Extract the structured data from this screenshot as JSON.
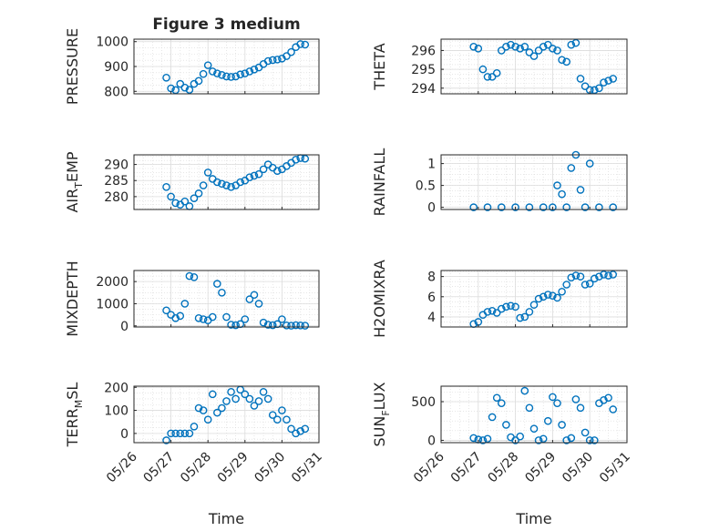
{
  "figure": {
    "title": "Figure 3 medium"
  },
  "chart_data": [
    {
      "id": "pressure",
      "type": "scatter",
      "title": "Figure 3 medium",
      "ylabel": "PRESSURE",
      "ylabel_sub": "",
      "ylabel_tail": "",
      "xlabel": "",
      "xlim": [
        "05/26",
        "05/31"
      ],
      "ylim": [
        790,
        1010
      ],
      "yticks": [
        800,
        900,
        1000
      ],
      "xticks": [],
      "grid": true,
      "minor_grid": true,
      "color": "#0072BD",
      "x": [
        "05/26 21:00",
        "05/27 00:00",
        "05/27 03:00",
        "05/27 06:00",
        "05/27 09:00",
        "05/27 12:00",
        "05/27 15:00",
        "05/27 18:00",
        "05/27 21:00",
        "05/28 00:00",
        "05/28 03:00",
        "05/28 06:00",
        "05/28 09:00",
        "05/28 12:00",
        "05/28 15:00",
        "05/28 18:00",
        "05/28 21:00",
        "05/29 00:00",
        "05/29 03:00",
        "05/29 06:00",
        "05/29 09:00",
        "05/29 12:00",
        "05/29 15:00",
        "05/29 18:00",
        "05/29 21:00",
        "05/30 00:00",
        "05/30 03:00",
        "05/30 06:00",
        "05/30 09:00",
        "05/30 12:00",
        "05/30 15:00"
      ],
      "y": [
        855,
        812,
        805,
        830,
        815,
        806,
        830,
        842,
        870,
        905,
        880,
        872,
        866,
        860,
        858,
        860,
        868,
        872,
        880,
        888,
        896,
        910,
        922,
        926,
        928,
        932,
        942,
        958,
        978,
        990,
        988
      ]
    },
    {
      "id": "theta",
      "type": "scatter",
      "title": "",
      "ylabel": "THETA",
      "ylabel_sub": "",
      "ylabel_tail": "",
      "xlabel": "",
      "xlim": [
        "05/26",
        "05/31"
      ],
      "ylim": [
        293.7,
        296.6
      ],
      "yticks": [
        294,
        295,
        296
      ],
      "xticks": [],
      "grid": true,
      "minor_grid": true,
      "color": "#0072BD",
      "x": [
        "05/26 21:00",
        "05/27 00:00",
        "05/27 03:00",
        "05/27 06:00",
        "05/27 09:00",
        "05/27 12:00",
        "05/27 15:00",
        "05/27 18:00",
        "05/27 21:00",
        "05/28 00:00",
        "05/28 03:00",
        "05/28 06:00",
        "05/28 09:00",
        "05/28 12:00",
        "05/28 15:00",
        "05/28 18:00",
        "05/28 21:00",
        "05/29 00:00",
        "05/29 03:00",
        "05/29 06:00",
        "05/29 09:00",
        "05/29 12:00",
        "05/29 15:00",
        "05/29 18:00",
        "05/29 21:00",
        "05/30 00:00",
        "05/30 03:00",
        "05/30 06:00",
        "05/30 09:00",
        "05/30 12:00",
        "05/30 15:00"
      ],
      "y": [
        296.2,
        296.1,
        295.0,
        294.6,
        294.6,
        294.8,
        296.0,
        296.2,
        296.3,
        296.2,
        296.1,
        296.2,
        295.9,
        295.7,
        296.0,
        296.2,
        296.3,
        296.1,
        296.0,
        295.5,
        295.4,
        296.3,
        296.4,
        294.5,
        294.1,
        293.9,
        293.9,
        294.0,
        294.3,
        294.4,
        294.5
      ]
    },
    {
      "id": "air_temp",
      "type": "scatter",
      "title": "",
      "ylabel": "AIR",
      "ylabel_sub": "T",
      "ylabel_tail": "EMP",
      "xlabel": "",
      "xlim": [
        "05/26",
        "05/31"
      ],
      "ylim": [
        276,
        293
      ],
      "yticks": [
        280,
        285,
        290
      ],
      "xticks": [],
      "grid": true,
      "minor_grid": true,
      "color": "#0072BD",
      "x": [
        "05/26 21:00",
        "05/27 00:00",
        "05/27 03:00",
        "05/27 06:00",
        "05/27 09:00",
        "05/27 12:00",
        "05/27 15:00",
        "05/27 18:00",
        "05/27 21:00",
        "05/28 00:00",
        "05/28 03:00",
        "05/28 06:00",
        "05/28 09:00",
        "05/28 12:00",
        "05/28 15:00",
        "05/28 18:00",
        "05/28 21:00",
        "05/29 00:00",
        "05/29 03:00",
        "05/29 06:00",
        "05/29 09:00",
        "05/29 12:00",
        "05/29 15:00",
        "05/29 18:00",
        "05/29 21:00",
        "05/30 00:00",
        "05/30 03:00",
        "05/30 06:00",
        "05/30 09:00",
        "05/30 12:00",
        "05/30 15:00"
      ],
      "y": [
        283.0,
        280.0,
        278.0,
        277.5,
        278.5,
        277.0,
        279.5,
        281.0,
        283.5,
        287.5,
        285.5,
        284.5,
        284.0,
        283.5,
        283.0,
        283.5,
        284.5,
        285.0,
        286.0,
        286.5,
        287.0,
        288.5,
        290.0,
        289.0,
        288.0,
        288.5,
        289.5,
        290.5,
        291.5,
        292.0,
        291.8
      ]
    },
    {
      "id": "rainfall",
      "type": "scatter",
      "title": "",
      "ylabel": "RAINFALL",
      "ylabel_sub": "",
      "ylabel_tail": "",
      "xlabel": "",
      "xlim": [
        "05/26",
        "05/31"
      ],
      "ylim": [
        -0.05,
        1.2
      ],
      "yticks": [
        0,
        0.5,
        1
      ],
      "xticks": [],
      "grid": true,
      "minor_grid": true,
      "color": "#0072BD",
      "x": [
        "05/26 21:00",
        "05/27 06:00",
        "05/27 15:00",
        "05/28 00:00",
        "05/28 09:00",
        "05/28 18:00",
        "05/29 00:00",
        "05/29 03:00",
        "05/29 06:00",
        "05/29 09:00",
        "05/29 12:00",
        "05/29 15:00",
        "05/29 18:00",
        "05/29 21:00",
        "05/30 00:00",
        "05/30 06:00",
        "05/30 15:00"
      ],
      "y": [
        0,
        0,
        0,
        0,
        0,
        0,
        0,
        0.5,
        0.3,
        0,
        0.9,
        1.2,
        0.4,
        0,
        1.0,
        0,
        0
      ]
    },
    {
      "id": "mixdepth",
      "type": "scatter",
      "title": "",
      "ylabel": "MIXDEPTH",
      "ylabel_sub": "",
      "ylabel_tail": "",
      "xlabel": "",
      "xlim": [
        "05/26",
        "05/31"
      ],
      "ylim": [
        -50,
        2500
      ],
      "yticks": [
        0,
        1000,
        2000
      ],
      "xticks": [],
      "grid": true,
      "minor_grid": true,
      "color": "#0072BD",
      "x": [
        "05/26 21:00",
        "05/27 00:00",
        "05/27 03:00",
        "05/27 06:00",
        "05/27 09:00",
        "05/27 12:00",
        "05/27 15:00",
        "05/27 18:00",
        "05/27 21:00",
        "05/28 00:00",
        "05/28 03:00",
        "05/28 06:00",
        "05/28 09:00",
        "05/28 12:00",
        "05/28 15:00",
        "05/28 18:00",
        "05/28 21:00",
        "05/29 00:00",
        "05/29 03:00",
        "05/29 06:00",
        "05/29 09:00",
        "05/29 12:00",
        "05/29 15:00",
        "05/29 18:00",
        "05/29 21:00",
        "05/30 00:00",
        "05/30 03:00",
        "05/30 06:00",
        "05/30 09:00",
        "05/30 12:00",
        "05/30 15:00"
      ],
      "y": [
        700,
        500,
        350,
        450,
        1000,
        2250,
        2200,
        350,
        300,
        250,
        400,
        1900,
        1500,
        400,
        50,
        30,
        80,
        300,
        1200,
        1400,
        1000,
        150,
        50,
        30,
        80,
        300,
        20,
        10,
        30,
        20,
        10
      ]
    },
    {
      "id": "h2omixra",
      "type": "scatter",
      "title": "",
      "ylabel": "H2OMIXRA",
      "ylabel_sub": "",
      "ylabel_tail": "",
      "xlabel": "",
      "xlim": [
        "05/26",
        "05/31"
      ],
      "ylim": [
        3.0,
        8.6
      ],
      "yticks": [
        4,
        6,
        8
      ],
      "xticks": [],
      "grid": true,
      "minor_grid": true,
      "color": "#0072BD",
      "x": [
        "05/26 21:00",
        "05/27 00:00",
        "05/27 03:00",
        "05/27 06:00",
        "05/27 09:00",
        "05/27 12:00",
        "05/27 15:00",
        "05/27 18:00",
        "05/27 21:00",
        "05/28 00:00",
        "05/28 03:00",
        "05/28 06:00",
        "05/28 09:00",
        "05/28 12:00",
        "05/28 15:00",
        "05/28 18:00",
        "05/28 21:00",
        "05/29 00:00",
        "05/29 03:00",
        "05/29 06:00",
        "05/29 09:00",
        "05/29 12:00",
        "05/29 15:00",
        "05/29 18:00",
        "05/29 21:00",
        "05/30 00:00",
        "05/30 03:00",
        "05/30 06:00",
        "05/30 09:00",
        "05/30 12:00",
        "05/30 15:00"
      ],
      "y": [
        3.3,
        3.5,
        4.2,
        4.5,
        4.6,
        4.4,
        4.8,
        5.0,
        5.1,
        5.0,
        3.9,
        4.0,
        4.5,
        5.2,
        5.8,
        6.0,
        6.2,
        6.1,
        5.9,
        6.5,
        7.2,
        7.9,
        8.1,
        8.0,
        7.2,
        7.3,
        7.8,
        8.0,
        8.2,
        8.1,
        8.2
      ]
    },
    {
      "id": "terr_msl",
      "type": "scatter",
      "title": "",
      "ylabel": "TERR",
      "ylabel_sub": "M",
      "ylabel_tail": "SL",
      "xlabel": "Time",
      "xlim": [
        "05/26",
        "05/31"
      ],
      "ylim": [
        -40,
        205
      ],
      "yticks": [
        0,
        100,
        200
      ],
      "xticks": [
        "05/26",
        "05/27",
        "05/28",
        "05/29",
        "05/30",
        "05/31"
      ],
      "grid": true,
      "minor_grid": true,
      "color": "#0072BD",
      "x": [
        "05/26 21:00",
        "05/27 00:00",
        "05/27 03:00",
        "05/27 06:00",
        "05/27 09:00",
        "05/27 12:00",
        "05/27 15:00",
        "05/27 18:00",
        "05/27 21:00",
        "05/28 00:00",
        "05/28 03:00",
        "05/28 06:00",
        "05/28 09:00",
        "05/28 12:00",
        "05/28 15:00",
        "05/28 18:00",
        "05/28 21:00",
        "05/29 00:00",
        "05/29 03:00",
        "05/29 06:00",
        "05/29 09:00",
        "05/29 12:00",
        "05/29 15:00",
        "05/29 18:00",
        "05/29 21:00",
        "05/30 00:00",
        "05/30 03:00",
        "05/30 06:00",
        "05/30 09:00",
        "05/30 12:00",
        "05/30 15:00"
      ],
      "y": [
        -30,
        0,
        0,
        0,
        0,
        0,
        30,
        110,
        100,
        60,
        170,
        90,
        110,
        140,
        180,
        150,
        190,
        170,
        150,
        120,
        140,
        180,
        150,
        80,
        60,
        100,
        60,
        20,
        0,
        10,
        20
      ]
    },
    {
      "id": "sun_flux",
      "type": "scatter",
      "title": "",
      "ylabel": "SUN",
      "ylabel_sub": "F",
      "ylabel_tail": "LUX",
      "xlabel": "Time",
      "xlim": [
        "05/26",
        "05/31"
      ],
      "ylim": [
        -30,
        700
      ],
      "yticks": [
        0,
        500
      ],
      "xticks": [
        "05/26",
        "05/27",
        "05/28",
        "05/29",
        "05/30",
        "05/31"
      ],
      "grid": true,
      "minor_grid": true,
      "color": "#0072BD",
      "x": [
        "05/26 21:00",
        "05/27 00:00",
        "05/27 03:00",
        "05/27 06:00",
        "05/27 09:00",
        "05/27 12:00",
        "05/27 15:00",
        "05/27 18:00",
        "05/27 21:00",
        "05/28 00:00",
        "05/28 03:00",
        "05/28 06:00",
        "05/28 09:00",
        "05/28 12:00",
        "05/28 15:00",
        "05/28 18:00",
        "05/28 21:00",
        "05/29 00:00",
        "05/29 03:00",
        "05/29 06:00",
        "05/29 09:00",
        "05/29 12:00",
        "05/29 15:00",
        "05/29 18:00",
        "05/29 21:00",
        "05/30 00:00",
        "05/30 03:00",
        "05/30 06:00",
        "05/30 09:00",
        "05/30 12:00",
        "05/30 15:00"
      ],
      "y": [
        30,
        10,
        0,
        20,
        300,
        550,
        480,
        200,
        40,
        0,
        50,
        640,
        420,
        150,
        0,
        20,
        250,
        560,
        480,
        200,
        0,
        30,
        530,
        420,
        100,
        0,
        0,
        480,
        520,
        550,
        400
      ]
    }
  ]
}
